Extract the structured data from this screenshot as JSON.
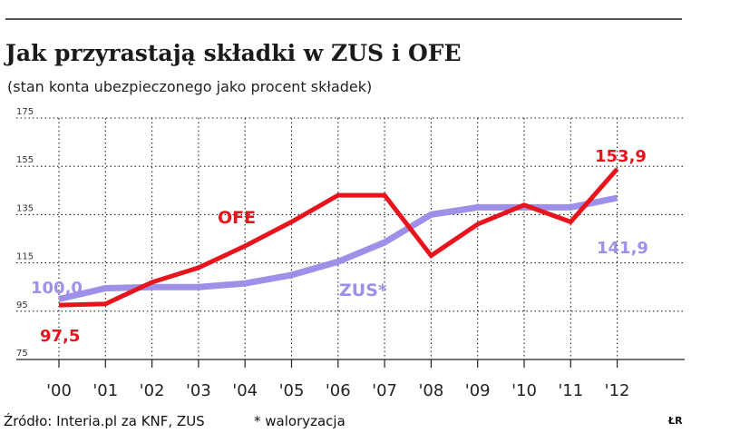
{
  "header": {
    "title": "Jak przyrastają składki w ZUS i OFE",
    "subtitle": "(stan konta ubezpieczonego jako procent składek)"
  },
  "footer": {
    "source": "Źródło: Interia.pl za KNF, ZUS",
    "note": "* waloryzacja",
    "logo": "ŁR"
  },
  "colors": {
    "ofe": "#e8141d",
    "zus": "#9e8fe8",
    "grid": "#222222"
  },
  "chart_data": {
    "type": "line",
    "title": "Jak przyrastają składki w ZUS i OFE",
    "subtitle": "(stan konta ubezpieczonego jako procent składek)",
    "x": [
      "'00",
      "'01",
      "'02",
      "'03",
      "'04",
      "'05",
      "'06",
      "'07",
      "'08",
      "'09",
      "'10",
      "'11",
      "'12"
    ],
    "y_ticks": [
      "175",
      "155",
      "135",
      "115",
      "95",
      "75"
    ],
    "ylim": [
      75,
      175
    ],
    "grid": true,
    "series": [
      {
        "name": "OFE",
        "values": [
          97.5,
          98.0,
          107.0,
          113.0,
          122.0,
          132.0,
          143.0,
          143.0,
          118.0,
          131.0,
          139.0,
          132.0,
          153.9
        ]
      },
      {
        "name": "ZUS*",
        "values": [
          100.0,
          104.5,
          105.0,
          105.0,
          106.5,
          110.0,
          115.5,
          123.5,
          135.0,
          138.0,
          138.0,
          138.0,
          141.9
        ]
      }
    ],
    "annotations": {
      "ofe_start": "97,5",
      "ofe_end": "153,9",
      "zus_start": "100,0",
      "zus_end": "141,9"
    }
  }
}
